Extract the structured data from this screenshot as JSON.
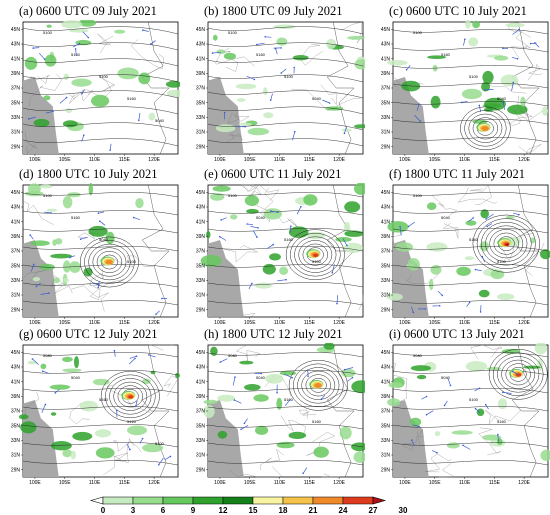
{
  "chart_data": {
    "type": "heatmap",
    "panels": [
      {
        "id": "a",
        "title": "(a) 0600 UTC 09 July 2021",
        "contours": [
          "5100",
          "5160",
          "5100",
          "5160",
          "5040"
        ],
        "storm": null
      },
      {
        "id": "b",
        "title": "(b) 1800 UTC 09 July 2021",
        "contours": [
          "5100",
          "5160",
          "5100",
          "5040"
        ],
        "storm": null
      },
      {
        "id": "c",
        "title": "(c) 0600 UTC 10 July 2021",
        "contours": [
          "5100",
          "5160",
          "5100",
          "5040"
        ],
        "storm": {
          "lon": 113.5,
          "lat": 31.5,
          "intensity": 21
        }
      },
      {
        "id": "d",
        "title": "(d) 1800 UTC 10 July 2021",
        "contours": [
          "5100",
          "5160",
          "5040",
          "5100"
        ],
        "storm": {
          "lon": 112.5,
          "lat": 35.5,
          "intensity": 24
        }
      },
      {
        "id": "e",
        "title": "(e) 0600 UTC 11 July 2021",
        "contours": [
          "5100",
          "5040",
          "5160",
          "5100"
        ],
        "storm": {
          "lon": 116.0,
          "lat": 36.5,
          "intensity": 27
        }
      },
      {
        "id": "f",
        "title": "(f) 1800 UTC 11 July 2021",
        "contours": [
          "5100",
          "5040",
          "5160",
          "5100"
        ],
        "storm": {
          "lon": 117.0,
          "lat": 38.0,
          "intensity": 30
        }
      },
      {
        "id": "g",
        "title": "(g) 0600 UTC 12 July 2021",
        "contours": [
          "5080",
          "5040",
          "5160",
          "5120",
          "5100"
        ],
        "storm": {
          "lon": 116.0,
          "lat": 39.0,
          "intensity": 27
        }
      },
      {
        "id": "h",
        "title": "(h) 1800 UTC 12 July 2021",
        "contours": [
          "5080",
          "5040",
          "5100",
          "5160"
        ],
        "storm": {
          "lon": 116.5,
          "lat": 40.5,
          "intensity": 24
        }
      },
      {
        "id": "i",
        "title": "(i) 0600 UTC 13 July 2021",
        "contours": [
          "5080",
          "5040",
          "5100",
          "5160"
        ],
        "storm": {
          "lon": 119.0,
          "lat": 42.0,
          "intensity": 27
        }
      }
    ],
    "lat_ticks": [
      "29N",
      "31N",
      "33N",
      "35N",
      "37N",
      "39N",
      "41N",
      "43N",
      "45N"
    ],
    "lon_ticks": [
      "100E",
      "105E",
      "110E",
      "115E",
      "120E"
    ],
    "lon_range": [
      98,
      124
    ],
    "lat_range": [
      28,
      46
    ],
    "colorbar": {
      "ticks": [
        "0",
        "3",
        "6",
        "9",
        "12",
        "15",
        "18",
        "21",
        "24",
        "27",
        "30"
      ],
      "colors": [
        "#ffffff",
        "#c7ebc0",
        "#98dc8e",
        "#66c85e",
        "#2ea22c",
        "#15801a",
        "#f7f3a0",
        "#f5c34a",
        "#f0892a",
        "#dd3a1e",
        "#b20f14"
      ]
    }
  }
}
